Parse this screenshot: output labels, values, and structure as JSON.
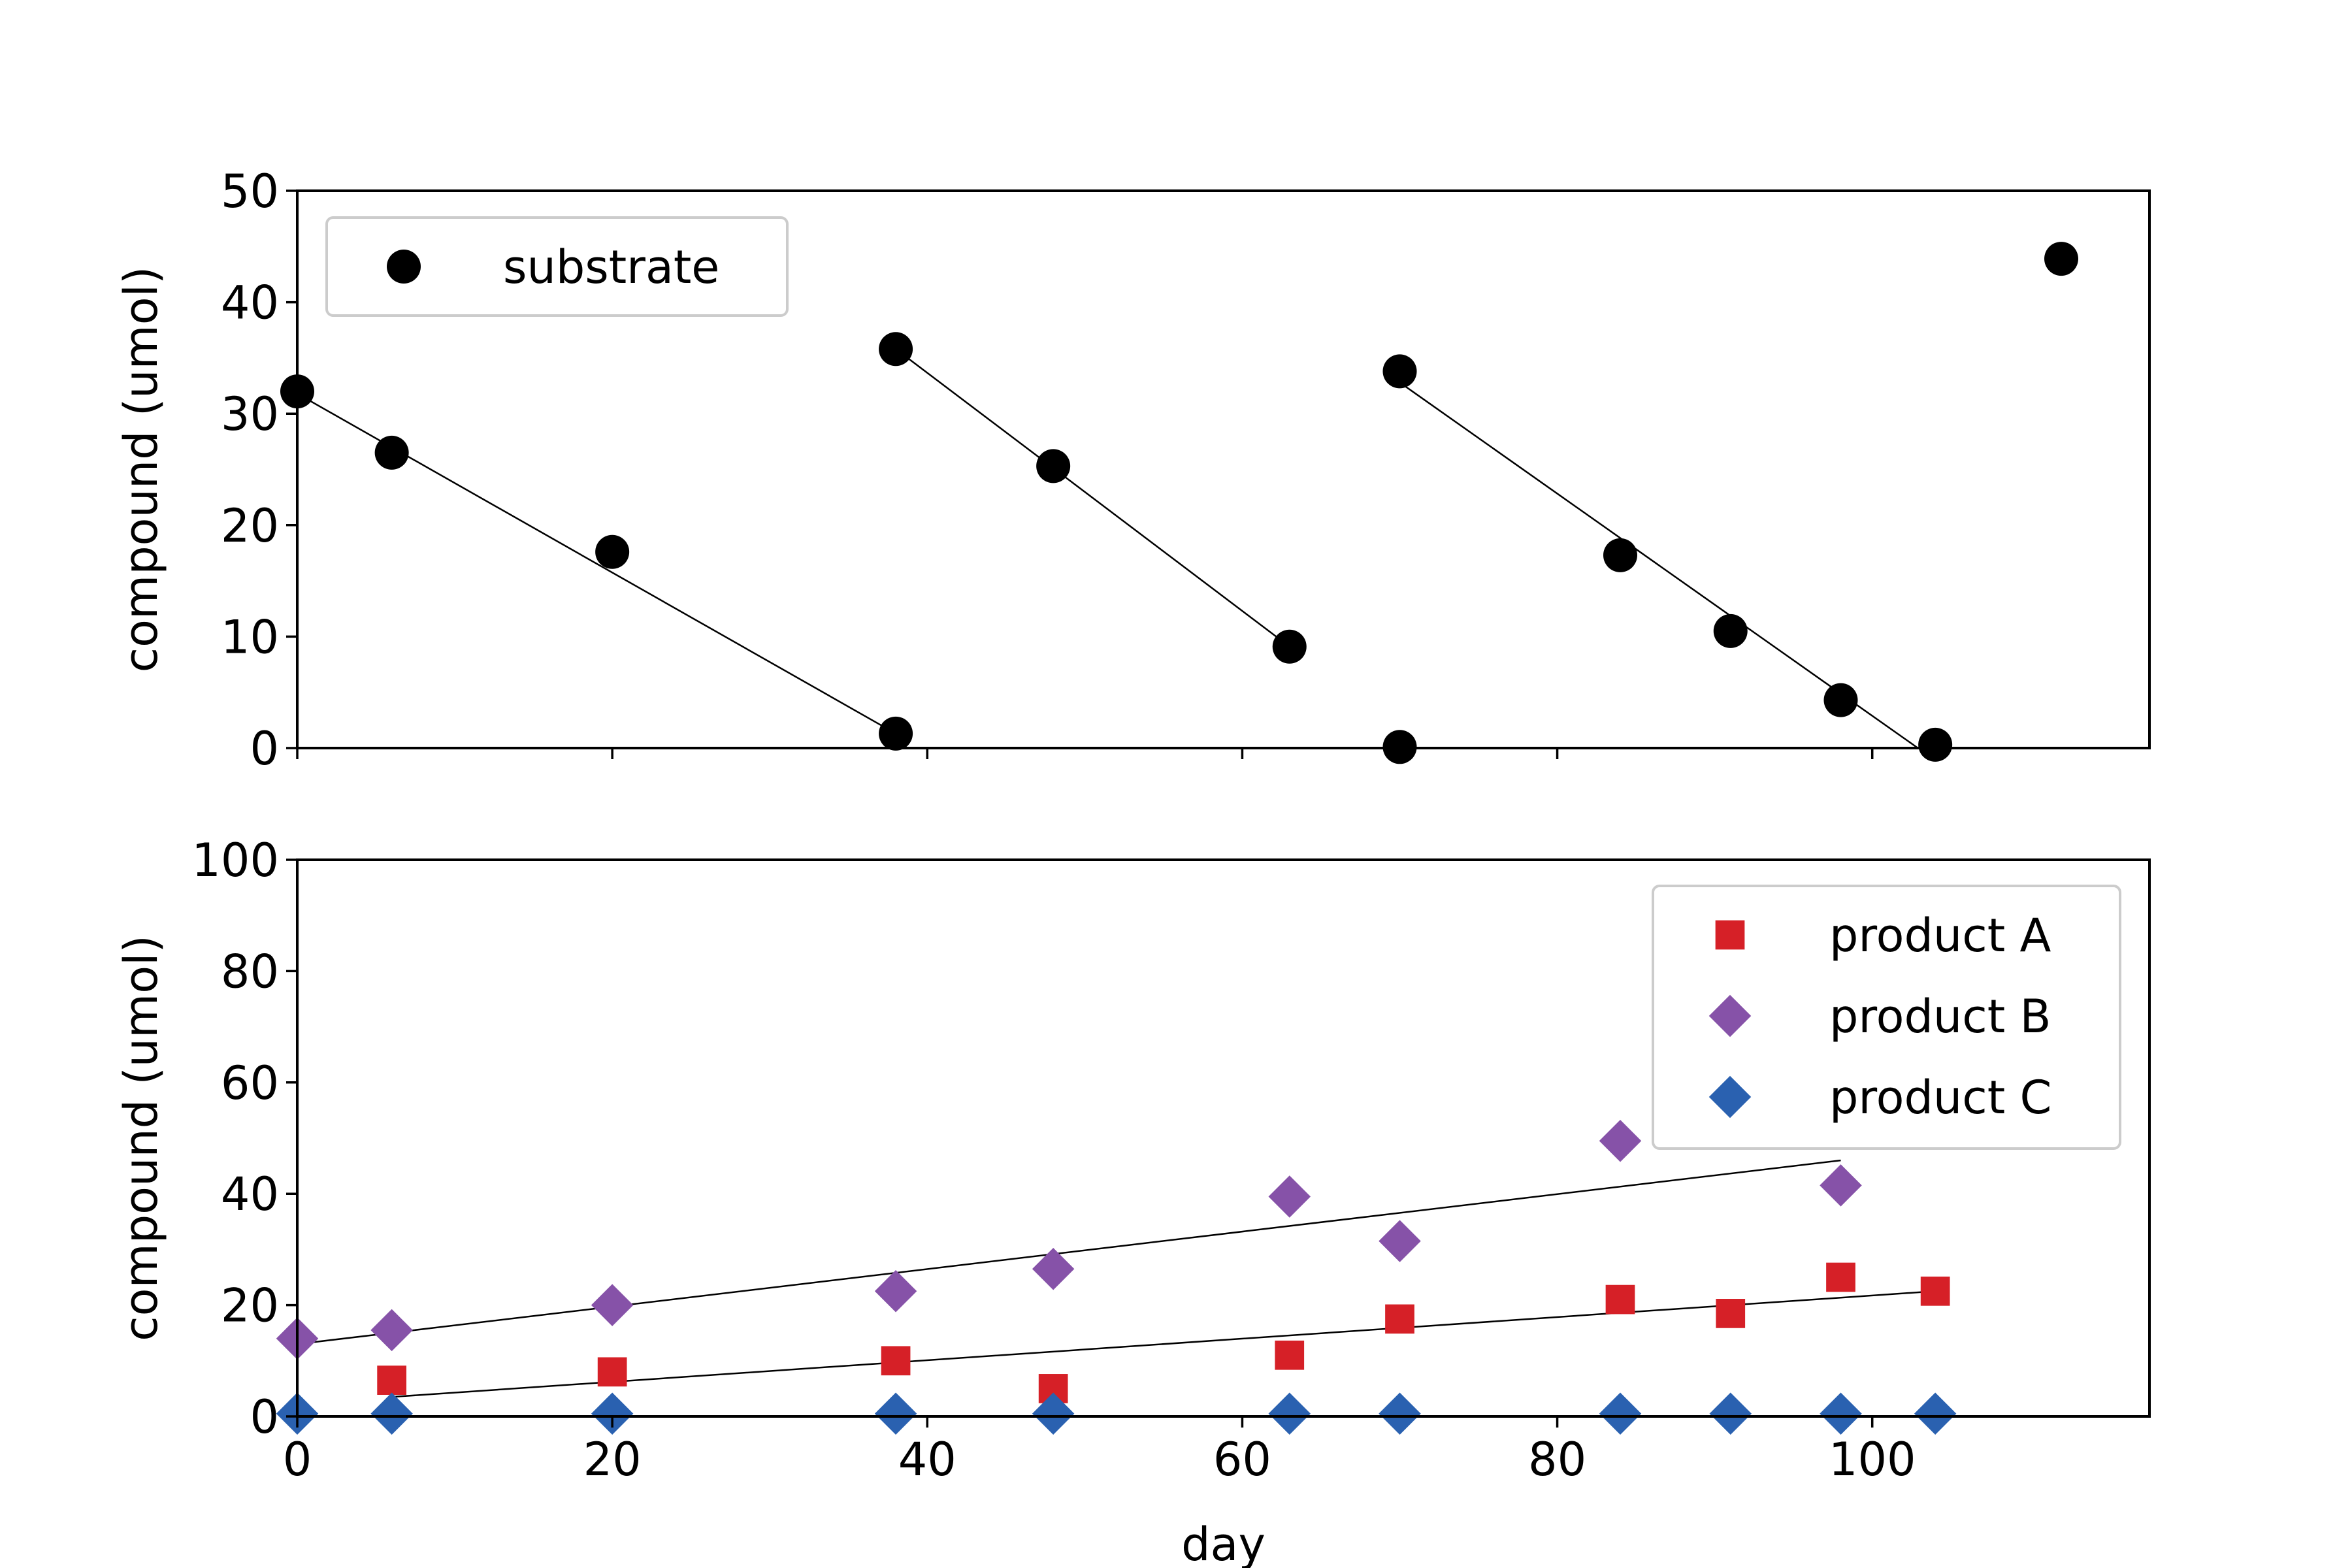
{
  "chart_data": [
    {
      "type": "scatter",
      "title": "",
      "xlabel": "",
      "ylabel": "compound (umol)",
      "xlim": [
        0,
        117.6
      ],
      "ylim": [
        0,
        50
      ],
      "xticks": [
        0,
        20,
        40,
        60,
        80,
        100
      ],
      "xtick_labels_shown": false,
      "yticks": [
        0,
        10,
        20,
        30,
        40,
        50
      ],
      "ytick_labels": [
        "0",
        "10",
        "20",
        "30",
        "40",
        "50"
      ],
      "grid": false,
      "legend_position": "top-left",
      "series": [
        {
          "name": "substrate",
          "marker": "circle",
          "color": "#000000",
          "points": [
            [
              0,
              32.0
            ],
            [
              6,
              26.5
            ],
            [
              20,
              17.6
            ],
            [
              38,
              1.3
            ],
            [
              38,
              35.8
            ],
            [
              48,
              25.3
            ],
            [
              63,
              9.1
            ],
            [
              70,
              0.1
            ],
            [
              70,
              33.8
            ],
            [
              84,
              17.3
            ],
            [
              91,
              10.5
            ],
            [
              98,
              4.3
            ],
            [
              104,
              0.3
            ],
            [
              112,
              43.9
            ]
          ]
        }
      ],
      "fit_lines": [
        {
          "from": [
            0,
            31.8
          ],
          "to": [
            38,
            1.3
          ]
        },
        {
          "from": [
            38,
            35.8
          ],
          "to": [
            63,
            9.1
          ]
        },
        {
          "from": [
            70,
            32.8
          ],
          "to": [
            102.9,
            0.0
          ]
        }
      ]
    },
    {
      "type": "scatter",
      "title": "",
      "xlabel": "day",
      "ylabel": "compound (umol)",
      "xlim": [
        0,
        117.6
      ],
      "ylim": [
        0,
        100
      ],
      "xticks": [
        0,
        20,
        40,
        60,
        80,
        100
      ],
      "xtick_labels": [
        "0",
        "20",
        "40",
        "60",
        "80",
        "100"
      ],
      "yticks": [
        0,
        20,
        40,
        60,
        80,
        100
      ],
      "ytick_labels": [
        "0",
        "20",
        "40",
        "60",
        "80",
        "100"
      ],
      "grid": false,
      "legend_position": "top-right",
      "series": [
        {
          "name": "product A",
          "marker": "square",
          "color": "#d62027",
          "points": [
            [
              6,
              6.5
            ],
            [
              20,
              8.0
            ],
            [
              38,
              10.0
            ],
            [
              48,
              5.0
            ],
            [
              63,
              11.0
            ],
            [
              70,
              17.5
            ],
            [
              84,
              21.0
            ],
            [
              91,
              18.5
            ],
            [
              98,
              25.0
            ],
            [
              104,
              22.5
            ]
          ]
        },
        {
          "name": "product B",
          "marker": "diamond",
          "color": "#8652a8",
          "points": [
            [
              0,
              14.0
            ],
            [
              6,
              15.5
            ],
            [
              20,
              20.0
            ],
            [
              38,
              22.5
            ],
            [
              48,
              26.5
            ],
            [
              63,
              39.5
            ],
            [
              70,
              31.5
            ],
            [
              84,
              49.5
            ],
            [
              98,
              41.5
            ]
          ]
        },
        {
          "name": "product C",
          "marker": "diamond",
          "color": "#2a61b0",
          "points": [
            [
              0,
              0.5
            ],
            [
              6,
              0.5
            ],
            [
              20,
              0.5
            ],
            [
              38,
              0.5
            ],
            [
              48,
              0.5
            ],
            [
              63,
              0.5
            ],
            [
              70,
              0.5
            ],
            [
              84,
              0.5
            ],
            [
              91,
              0.5
            ],
            [
              98,
              0.5
            ],
            [
              104,
              0.5
            ]
          ]
        }
      ],
      "fit_lines": [
        {
          "from": [
            6,
            3.5
          ],
          "to": [
            104,
            22.5
          ]
        },
        {
          "from": [
            0,
            13.0
          ],
          "to": [
            98,
            46.0
          ]
        }
      ]
    }
  ]
}
